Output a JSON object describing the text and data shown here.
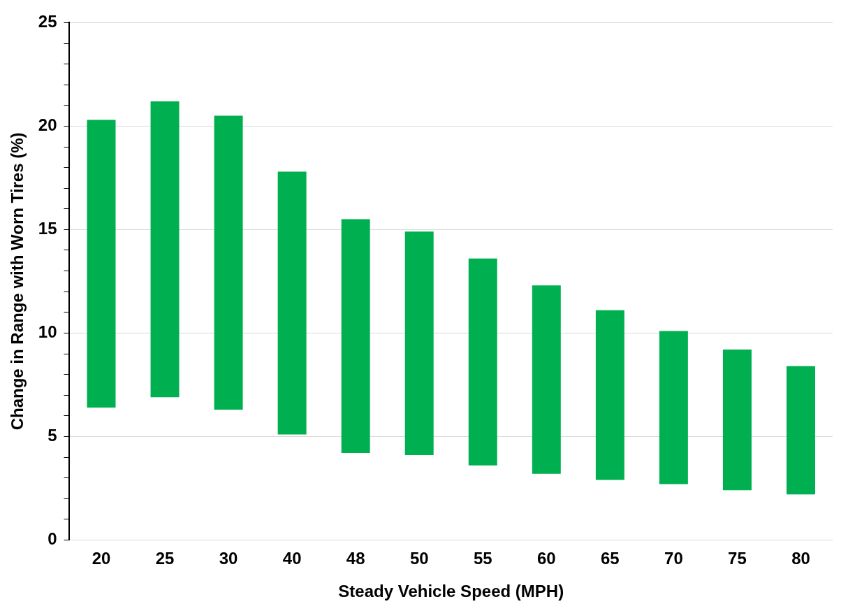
{
  "chart_data": {
    "type": "bar",
    "xlabel": "Steady Vehicle Speed (MPH)",
    "ylabel": "Change in Range with Worn Tires (%)",
    "categories": [
      "20",
      "25",
      "30",
      "40",
      "48",
      "50",
      "55",
      "60",
      "65",
      "70",
      "75",
      "80"
    ],
    "base": [
      6.4,
      6.9,
      6.3,
      5.1,
      4.2,
      4.1,
      3.6,
      3.2,
      2.9,
      2.7,
      2.4,
      2.2
    ],
    "values": [
      13.9,
      14.3,
      14.2,
      12.7,
      11.3,
      10.8,
      10.0,
      9.1,
      8.2,
      7.4,
      6.8,
      6.2
    ],
    "color": "#00b050",
    "ylim": [
      0,
      25
    ],
    "yticks": [
      0,
      {
        "value": 1,
        "label": null
      },
      {
        "value": 2,
        "label": null
      },
      {
        "value": 3,
        "label": null
      },
      {
        "value": 4,
        "label": null
      },
      5,
      {
        "value": 6,
        "label": null
      },
      {
        "value": 7,
        "label": null
      },
      {
        "value": 8,
        "label": null
      },
      {
        "value": 9,
        "label": null
      },
      10,
      {
        "value": 11,
        "label": null
      },
      {
        "value": 12,
        "label": null
      },
      {
        "value": 13,
        "label": null
      },
      {
        "value": 14,
        "label": null
      },
      15,
      {
        "value": 16,
        "label": null
      },
      {
        "value": 17,
        "label": null
      },
      {
        "value": 18,
        "label": null
      },
      {
        "value": 19,
        "label": null
      },
      20,
      {
        "value": 21,
        "label": null
      },
      {
        "value": 22,
        "label": null
      },
      {
        "value": 23,
        "label": null
      },
      {
        "value": 24,
        "label": null
      },
      25
    ],
    "grid": "y",
    "legend": false
  }
}
